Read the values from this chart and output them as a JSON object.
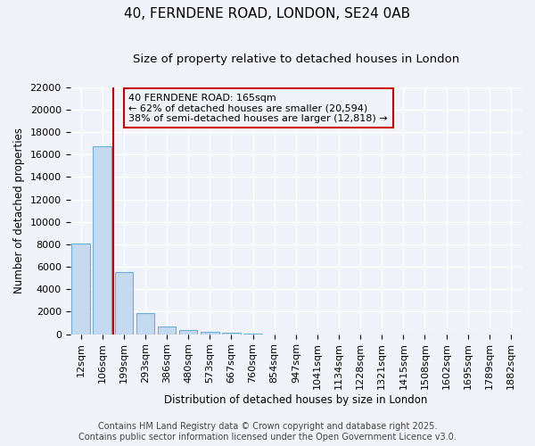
{
  "title": "40, FERNDENE ROAD, LONDON, SE24 0AB",
  "subtitle": "Size of property relative to detached houses in London",
  "xlabel": "Distribution of detached houses by size in London",
  "ylabel": "Number of detached properties",
  "bar_color": "#c5d9f0",
  "bar_edge_color": "#6baed6",
  "background_color": "#f0f4fa",
  "grid_color": "#ffffff",
  "categories": [
    "12sqm",
    "106sqm",
    "199sqm",
    "293sqm",
    "386sqm",
    "480sqm",
    "573sqm",
    "667sqm",
    "760sqm",
    "854sqm",
    "947sqm",
    "1041sqm",
    "1134sqm",
    "1228sqm",
    "1321sqm",
    "1415sqm",
    "1508sqm",
    "1602sqm",
    "1695sqm",
    "1789sqm",
    "1882sqm"
  ],
  "values": [
    8100,
    16700,
    5500,
    1900,
    700,
    380,
    170,
    100,
    60,
    0,
    0,
    0,
    0,
    0,
    0,
    0,
    0,
    0,
    0,
    0,
    0
  ],
  "ylim": [
    0,
    22000
  ],
  "yticks": [
    0,
    2000,
    4000,
    6000,
    8000,
    10000,
    12000,
    14000,
    16000,
    18000,
    20000,
    22000
  ],
  "vline_position": 1.5,
  "vline_color": "#cc0000",
  "annotation_text": "40 FERNDENE ROAD: 165sqm\n← 62% of detached houses are smaller (20,594)\n38% of semi-detached houses are larger (12,818) →",
  "footer_line1": "Contains HM Land Registry data © Crown copyright and database right 2025.",
  "footer_line2": "Contains public sector information licensed under the Open Government Licence v3.0.",
  "title_fontsize": 11,
  "subtitle_fontsize": 9.5,
  "tick_fontsize": 8,
  "ylabel_fontsize": 8.5,
  "xlabel_fontsize": 8.5,
  "annotation_fontsize": 8,
  "footer_fontsize": 7
}
